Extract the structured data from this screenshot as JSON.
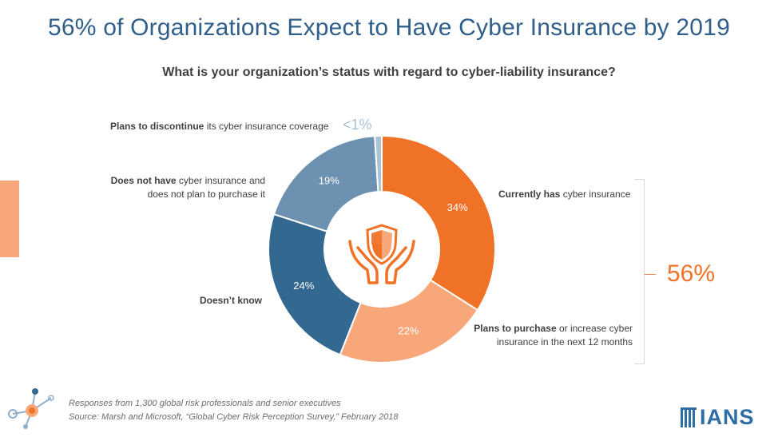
{
  "title": "56% of Organizations Expect to Have Cyber Insurance by 2019",
  "subtitle": "What is your organization’s status with regard to cyber-liability insurance?",
  "labels": {
    "discontinue_bold": "Plans to discontinue",
    "discontinue_rest": " its cyber insurance coverage",
    "discontinue_value": "<1%",
    "nothave_bold": "Does not have",
    "nothave_rest1": " cyber insurance and",
    "nothave_rest2": "does not plan to purchase it",
    "currently_bold": "Currently has",
    "currently_rest": " cyber insurance",
    "dontknow_bold": "Doesn’t know",
    "plans_bold": "Plans to purchase",
    "plans_rest1": " or increase cyber",
    "plans_rest2": "insurance in the next 12 months"
  },
  "highlight_total": "56%",
  "footnote": {
    "line1": "Responses from 1,300 global risk professionals and senior executives",
    "line2": "Source: Marsh and Microsoft, “Global Cyber Risk Perception Survey,” February 2018"
  },
  "logo_text": "IANS",
  "icons": {
    "center": "shield-in-hands-icon",
    "network": "network-nodes-icon"
  },
  "colors": {
    "title": "#2f5f8a",
    "accent_orange": "#f07226",
    "light_orange": "#f7a77a",
    "dark_blue": "#336890",
    "mid_blue": "#6d91b0",
    "pale_blue": "#a9c2d6"
  },
  "chart_data": {
    "type": "pie",
    "variant": "donut",
    "title": "What is your organization’s status with regard to cyber-liability insurance?",
    "slices": [
      {
        "name": "Currently has cyber insurance",
        "value": 34,
        "label": "34%",
        "color": "#f07226"
      },
      {
        "name": "Plans to purchase or increase cyber insurance in the next 12 months",
        "value": 22,
        "label": "22%",
        "color": "#f7a77a"
      },
      {
        "name": "Doesn’t know",
        "value": 24,
        "label": "24%",
        "color": "#336890"
      },
      {
        "name": "Does not have cyber insurance and does not plan to purchase it",
        "value": 19,
        "label": "19%",
        "color": "#6d91b0"
      },
      {
        "name": "Plans to discontinue its cyber insurance coverage",
        "value": 1,
        "label": "<1%",
        "color": "#a9c2d6"
      }
    ],
    "start_angle_deg": 0
  }
}
